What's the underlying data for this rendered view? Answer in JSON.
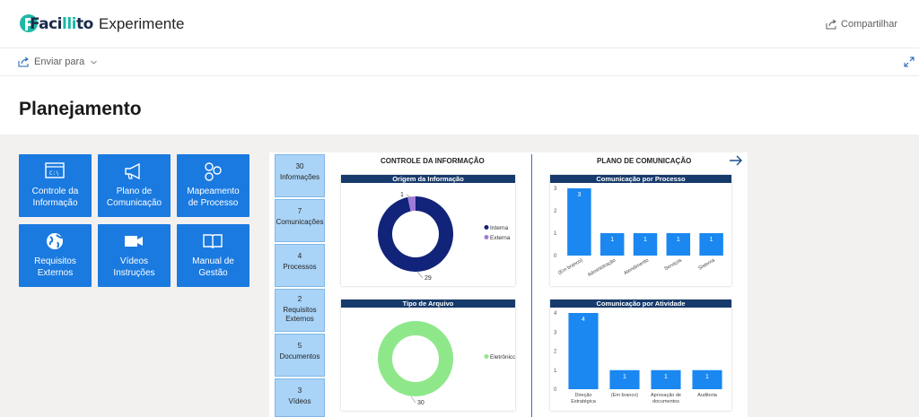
{
  "header": {
    "logo_text_main": "Faci",
    "logo_text_accent": "lli",
    "logo_text_end": "to",
    "app_title": "Experimente",
    "share_label": "Compartilhar"
  },
  "subbar": {
    "send_label": "Enviar para"
  },
  "page": {
    "title": "Planejamento"
  },
  "tiles": [
    {
      "label_1": "Controle da",
      "label_2": "Informação",
      "icon": "terminal-window-icon"
    },
    {
      "label_1": "Plano de",
      "label_2": "Comunicação",
      "icon": "megaphone-icon"
    },
    {
      "label_1": "Mapeamento",
      "label_2": "de Processo",
      "icon": "process-map-icon"
    },
    {
      "label_1": "Requisitos",
      "label_2": "Externos",
      "icon": "globe-icon"
    },
    {
      "label_1": "Vídeos",
      "label_2": "Instruções",
      "icon": "video-camera-icon"
    },
    {
      "label_1": "Manual de",
      "label_2": "Gestão",
      "icon": "book-icon"
    }
  ],
  "kpis": [
    {
      "value": "30",
      "label_1": "Informações",
      "label_2": ""
    },
    {
      "value": "7",
      "label_1": "Comunicações",
      "label_2": ""
    },
    {
      "value": "4",
      "label_1": "Processos",
      "label_2": ""
    },
    {
      "value": "2",
      "label_1": "Requisitos",
      "label_2": "Externos"
    },
    {
      "value": "5",
      "label_1": "Documentos",
      "label_2": ""
    },
    {
      "value": "3",
      "label_1": "Vídeos",
      "label_2": ""
    }
  ],
  "sections": {
    "left_title": "CONTROLE DA INFORMAÇÃO",
    "right_title": "PLANO DE COMUNICAÇÃO"
  },
  "colors": {
    "tile_blue": "#1a7ae0",
    "header_navy": "#163a6b",
    "donut_navy": "#12237a",
    "donut_purple": "#a07cd8",
    "donut_green": "#8ee88a",
    "bar_blue": "#1a88f0"
  },
  "chart_data": [
    {
      "type": "pie",
      "title": "Origem da Informação",
      "categories": [
        "Interna",
        "Externa"
      ],
      "values": [
        29,
        1
      ],
      "colors": [
        "#12237a",
        "#a07cd8"
      ],
      "legend": "right"
    },
    {
      "type": "pie",
      "title": "Tipo de Arquivo",
      "categories": [
        "Eletrônico"
      ],
      "values": [
        30
      ],
      "colors": [
        "#8ee88a"
      ],
      "legend": "right"
    },
    {
      "type": "bar",
      "title": "Comunicação por Processo",
      "categories": [
        "(Em branco)",
        "Administração",
        "Atendimento",
        "Serviços",
        "Sistema"
      ],
      "values": [
        3,
        1,
        1,
        1,
        1
      ],
      "ylim": [
        0,
        3
      ],
      "yticks": [
        0,
        1,
        2,
        3
      ]
    },
    {
      "type": "bar",
      "title": "Comunicação por Atividade",
      "categories": [
        "Direção Estratégica",
        "(Em branco)",
        "Aprovação de documentos",
        "Auditoria"
      ],
      "values": [
        4,
        1,
        1,
        1
      ],
      "ylim": [
        0,
        4
      ],
      "yticks": [
        0,
        1,
        2,
        3,
        4
      ]
    }
  ]
}
